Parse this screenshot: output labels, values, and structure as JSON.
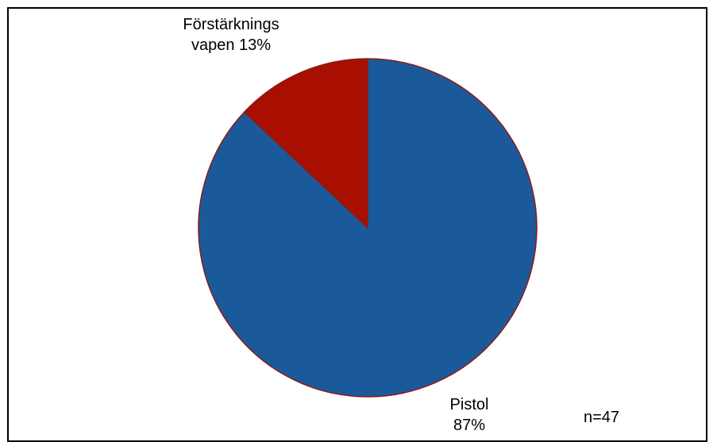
{
  "chart_data": {
    "type": "pie",
    "slices": [
      {
        "label": "Pistol",
        "value": 87,
        "value_label": "87%",
        "color": "#1B5A9A"
      },
      {
        "label": "Förstärknings vapen",
        "value": 13,
        "value_label": "13%",
        "color": "#A80F00"
      }
    ],
    "edge_color": "#8C1A1A",
    "labels": {
      "forst_line1": "Förstärknings",
      "forst_line2": "vapen  13%",
      "pistol_line1": "Pistol",
      "pistol_line2": "87%"
    },
    "note": "n=47"
  }
}
